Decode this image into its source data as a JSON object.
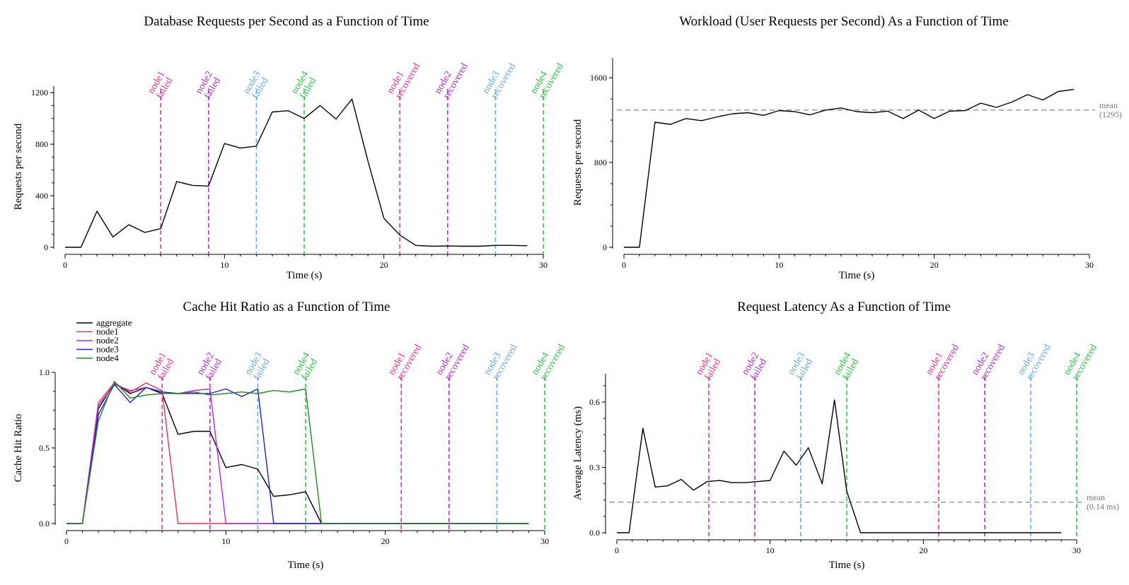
{
  "colors": {
    "aggregate": "#000000",
    "node1": "#e8338a",
    "node2": "#b030c8",
    "node3": "#6aa9e3",
    "node4": "#2fc44a",
    "mean": "#888888"
  },
  "chart_data": [
    {
      "id": "db",
      "type": "line",
      "title": "Database Requests per Second as a Function of Time",
      "xlabel": "Time (s)",
      "ylabel": "Requests per second",
      "xlim": [
        0,
        30
      ],
      "ylim": [
        0,
        1250
      ],
      "xticks": [
        0,
        10,
        20,
        30
      ],
      "yticks": [
        0,
        400,
        800,
        1200
      ],
      "series": [
        {
          "key": "aggregate",
          "x": [
            0,
            1,
            2,
            3,
            4,
            5,
            6,
            7,
            8,
            9,
            10,
            11,
            12,
            13,
            14,
            15,
            16,
            17,
            18,
            19,
            20,
            21,
            22,
            23,
            24,
            25,
            26,
            27,
            28,
            29
          ],
          "values": [
            0,
            0,
            280,
            80,
            175,
            115,
            145,
            510,
            480,
            475,
            805,
            770,
            785,
            1050,
            1060,
            1000,
            1100,
            995,
            1150,
            670,
            225,
            95,
            15,
            8,
            10,
            8,
            8,
            15,
            15,
            12
          ]
        }
      ],
      "events": [
        {
          "x": 6,
          "node": "node1",
          "lines": [
            "node1",
            "failed"
          ]
        },
        {
          "x": 9,
          "node": "node2",
          "lines": [
            "node2",
            "failed"
          ]
        },
        {
          "x": 12,
          "node": "node3",
          "lines": [
            "node3",
            "failed"
          ]
        },
        {
          "x": 15,
          "node": "node4",
          "lines": [
            "node4",
            "failed"
          ]
        },
        {
          "x": 21,
          "node": "node1",
          "lines": [
            "node1",
            "recovered"
          ]
        },
        {
          "x": 24,
          "node": "node2",
          "lines": [
            "node2",
            "recovered"
          ]
        },
        {
          "x": 27,
          "node": "node3",
          "lines": [
            "node3",
            "recovered"
          ]
        },
        {
          "x": 30,
          "node": "node4",
          "lines": [
            "node4",
            "recovered"
          ]
        }
      ]
    },
    {
      "id": "workload",
      "type": "line",
      "title": "Workload (User Requests per Second) As a Function of Time",
      "xlabel": "Time (s)",
      "ylabel": "Requests per second",
      "xlim": [
        0,
        30
      ],
      "ylim": [
        0,
        1600
      ],
      "xticks": [
        0,
        10,
        20,
        30
      ],
      "yticks": [
        0,
        800,
        1600
      ],
      "series": [
        {
          "key": "aggregate",
          "x": [
            0,
            1,
            2,
            3,
            4,
            5,
            6,
            7,
            8,
            9,
            10,
            11,
            12,
            13,
            14,
            15,
            16,
            17,
            18,
            19,
            20,
            21,
            22,
            23,
            24,
            25,
            26,
            27,
            28,
            29
          ],
          "values": [
            0,
            0,
            1180,
            1160,
            1215,
            1195,
            1230,
            1260,
            1270,
            1245,
            1290,
            1280,
            1250,
            1295,
            1315,
            1280,
            1270,
            1285,
            1215,
            1295,
            1215,
            1285,
            1290,
            1360,
            1320,
            1370,
            1440,
            1390,
            1470,
            1490
          ]
        }
      ],
      "mean": {
        "value": 1295,
        "lines": [
          "mean",
          "(1295)"
        ]
      },
      "events": []
    },
    {
      "id": "cache",
      "type": "line",
      "title": "Cache Hit Ratio as a Function of Time",
      "xlabel": "Time (s)",
      "ylabel": "Cache Hit Ratio",
      "xlim": [
        0,
        30
      ],
      "ylim": [
        0,
        1.0
      ],
      "xticks": [
        0,
        10,
        20,
        30
      ],
      "yticks": [
        0.0,
        0.5,
        1.0
      ],
      "ytick_labels": [
        "0.0",
        "0.5",
        "1.0"
      ],
      "legend": {
        "placement": "top-left",
        "entries": [
          "aggregate",
          "node1",
          "node2",
          "node3",
          "node4"
        ]
      },
      "series": [
        {
          "key": "aggregate",
          "name": "aggregate",
          "color": "#000000",
          "x": [
            0,
            1,
            2,
            3,
            4,
            5,
            6,
            7,
            8,
            9,
            10,
            11,
            12,
            13,
            14,
            15,
            16,
            17,
            29
          ],
          "values": [
            0,
            0,
            0.76,
            0.93,
            0.86,
            0.9,
            0.86,
            0.59,
            0.61,
            0.61,
            0.37,
            0.39,
            0.36,
            0.18,
            0.19,
            0.21,
            0,
            0,
            0
          ]
        },
        {
          "key": "node1",
          "name": "node1",
          "color": "#e0345a",
          "x": [
            0,
            1,
            2,
            3,
            4,
            5,
            6,
            7,
            29
          ],
          "values": [
            0,
            0,
            0.8,
            0.93,
            0.87,
            0.93,
            0.88,
            0,
            0
          ]
        },
        {
          "key": "node2",
          "name": "node2",
          "color": "#b22ad0",
          "x": [
            0,
            1,
            2,
            3,
            4,
            5,
            6,
            7,
            8,
            9,
            10,
            29
          ],
          "values": [
            0,
            0,
            0.78,
            0.92,
            0.88,
            0.9,
            0.87,
            0.86,
            0.88,
            0.89,
            0,
            0
          ]
        },
        {
          "key": "node3",
          "name": "node3",
          "color": "#2222cc",
          "x": [
            0,
            1,
            2,
            3,
            4,
            5,
            6,
            7,
            8,
            9,
            10,
            11,
            12,
            13,
            29
          ],
          "values": [
            0,
            0,
            0.72,
            0.92,
            0.8,
            0.9,
            0.87,
            0.86,
            0.86,
            0.86,
            0.89,
            0.84,
            0.89,
            0,
            0
          ]
        },
        {
          "key": "node4",
          "name": "node4",
          "color": "#228b22",
          "x": [
            0,
            1,
            2,
            3,
            4,
            5,
            6,
            7,
            8,
            9,
            10,
            11,
            12,
            13,
            14,
            15,
            16,
            29
          ],
          "values": [
            0,
            0,
            0.68,
            0.94,
            0.83,
            0.85,
            0.86,
            0.86,
            0.87,
            0.85,
            0.86,
            0.87,
            0.86,
            0.88,
            0.87,
            0.89,
            0,
            0
          ]
        }
      ],
      "events": [
        {
          "x": 6,
          "node": "node1",
          "lines": [
            "node1",
            "failed"
          ]
        },
        {
          "x": 9,
          "node": "node2",
          "lines": [
            "node2",
            "failed"
          ]
        },
        {
          "x": 12,
          "node": "node3",
          "lines": [
            "node3",
            "failed"
          ]
        },
        {
          "x": 15,
          "node": "node4",
          "lines": [
            "node4",
            "failed"
          ]
        },
        {
          "x": 21,
          "node": "node1",
          "lines": [
            "node1",
            "recovered"
          ]
        },
        {
          "x": 24,
          "node": "node2",
          "lines": [
            "node2",
            "recovered"
          ]
        },
        {
          "x": 27,
          "node": "node3",
          "lines": [
            "node3",
            "recovered"
          ]
        },
        {
          "x": 30,
          "node": "node4",
          "lines": [
            "node4",
            "recovered"
          ]
        }
      ]
    },
    {
      "id": "latency",
      "type": "line",
      "title": "Request Latency As a Function of Time",
      "xlabel": "Time (s)",
      "ylabel": "Average Latency (ms)",
      "xlim": [
        0,
        30
      ],
      "ylim": [
        0,
        0.73
      ],
      "xticks": [
        0,
        10,
        20,
        30
      ],
      "yticks": [
        0.0,
        0.3,
        0.6
      ],
      "ytick_labels": [
        "0.0",
        "0.3",
        "0.6"
      ],
      "series": [
        {
          "key": "aggregate",
          "x": [
            0,
            0.8,
            1.7,
            2.5,
            3.3,
            4.2,
            5.0,
            5.9,
            6.7,
            7.5,
            8.4,
            9.2,
            10.0,
            10.9,
            11.7,
            12.5,
            13.4,
            14.2,
            15.0,
            15.9,
            16.7,
            29
          ],
          "values": [
            0,
            0,
            0.48,
            0.21,
            0.215,
            0.245,
            0.195,
            0.235,
            0.24,
            0.23,
            0.23,
            0.235,
            0.24,
            0.375,
            0.31,
            0.39,
            0.225,
            0.61,
            0.19,
            0,
            0,
            0
          ]
        }
      ],
      "mean": {
        "value": 0.14,
        "lines": [
          "mean",
          "(0.14 ms)"
        ]
      },
      "events": [
        {
          "x": 6,
          "node": "node1",
          "lines": [
            "node1",
            "failed"
          ]
        },
        {
          "x": 9,
          "node": "node2",
          "lines": [
            "node2",
            "failed"
          ]
        },
        {
          "x": 12,
          "node": "node3",
          "lines": [
            "node3",
            "failed"
          ]
        },
        {
          "x": 15,
          "node": "node4",
          "lines": [
            "node4",
            "failed"
          ]
        },
        {
          "x": 21,
          "node": "node1",
          "lines": [
            "node1",
            "recovered"
          ]
        },
        {
          "x": 24,
          "node": "node2",
          "lines": [
            "node2",
            "recovered"
          ]
        },
        {
          "x": 27,
          "node": "node3",
          "lines": [
            "node3",
            "recovered"
          ]
        },
        {
          "x": 30,
          "node": "node4",
          "lines": [
            "node4",
            "recovered"
          ]
        }
      ]
    }
  ]
}
